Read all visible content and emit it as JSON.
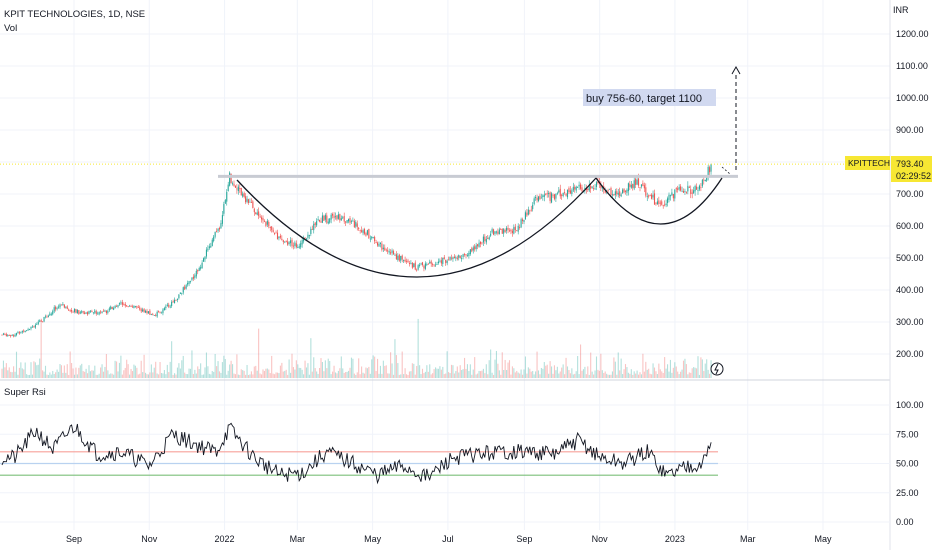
{
  "header": {
    "symbol_line": "KPIT TECHNOLOGIES, 1D, NSE",
    "volume_label": "Vol",
    "currency": "INR"
  },
  "price_badge": {
    "ticker": "KPITTECH",
    "price": "793.40",
    "countdown": "02:29:52"
  },
  "annotation": {
    "text": "buy 756-60, target 1100"
  },
  "indicator": {
    "name": "Super Rsi"
  },
  "colors": {
    "up": "#26a69a",
    "down": "#ef5350",
    "badge": "#f7e733",
    "rsi_upper": "#f7a19a",
    "rsi_mid": "#b9d2f0",
    "rsi_lower": "#7cbf7a",
    "annotation_bg": "#d1d9f0"
  },
  "chart_data": [
    {
      "type": "candlestick",
      "title": "KPIT TECHNOLOGIES, 1D, NSE",
      "ylabel": "INR",
      "ylim": [
        130,
        1260
      ],
      "y_ticks": [
        "1200.00",
        "1100.00",
        "1000.00",
        "900.00",
        "800.00",
        "700.00",
        "600.00",
        "500.00",
        "400.00",
        "300.00",
        "200.00"
      ],
      "x_ticks": [
        "Sep",
        "Nov",
        "2022",
        "Mar",
        "May",
        "Jul",
        "Sep",
        "Nov",
        "2023",
        "Mar",
        "May"
      ],
      "close_path": [
        [
          "2021-07-15",
          260
        ],
        [
          "2021-08-05",
          300
        ],
        [
          "2021-08-20",
          355
        ],
        [
          "2021-09-05",
          330
        ],
        [
          "2021-09-25",
          330
        ],
        [
          "2021-10-10",
          360
        ],
        [
          "2021-11-05",
          320
        ],
        [
          "2021-11-20",
          360
        ],
        [
          "2021-12-10",
          460
        ],
        [
          "2021-12-28",
          600
        ],
        [
          "2022-01-05",
          755
        ],
        [
          "2022-01-25",
          650
        ],
        [
          "2022-02-15",
          560
        ],
        [
          "2022-03-01",
          540
        ],
        [
          "2022-03-20",
          620
        ],
        [
          "2022-04-05",
          630
        ],
        [
          "2022-04-20",
          600
        ],
        [
          "2022-05-10",
          530
        ],
        [
          "2022-06-05",
          470
        ],
        [
          "2022-06-25",
          490
        ],
        [
          "2022-07-15",
          510
        ],
        [
          "2022-08-05",
          580
        ],
        [
          "2022-08-25",
          590
        ],
        [
          "2022-09-10",
          680
        ],
        [
          "2022-10-01",
          700
        ],
        [
          "2022-10-28",
          730
        ],
        [
          "2022-11-15",
          700
        ],
        [
          "2022-12-01",
          740
        ],
        [
          "2022-12-20",
          660
        ],
        [
          "2023-01-05",
          720
        ],
        [
          "2023-01-20",
          710
        ],
        [
          "2023-01-31",
          793.4
        ]
      ],
      "last_price": 793.4,
      "resistance_level": 755,
      "target": 1100,
      "pattern": "cup and handle"
    },
    {
      "type": "line",
      "title": "Super Rsi",
      "ylim": [
        0,
        100
      ],
      "y_ticks": [
        "100.00",
        "75.00",
        "50.00",
        "25.00",
        "0.00"
      ],
      "levels": [
        60,
        50,
        40
      ],
      "series": [
        {
          "name": "Super Rsi",
          "x": [
            "2021-07-15",
            "2021-08-01",
            "2021-08-15",
            "2021-09-01",
            "2021-09-20",
            "2021-10-10",
            "2021-11-01",
            "2021-11-20",
            "2021-12-05",
            "2021-12-25",
            "2022-01-05",
            "2022-01-25",
            "2022-02-15",
            "2022-03-05",
            "2022-03-25",
            "2022-04-15",
            "2022-05-05",
            "2022-05-25",
            "2022-06-15",
            "2022-07-05",
            "2022-07-25",
            "2022-08-15",
            "2022-09-05",
            "2022-09-25",
            "2022-10-15",
            "2022-11-01",
            "2022-11-20",
            "2022-12-10",
            "2022-12-25",
            "2023-01-10",
            "2023-01-25",
            "2023-01-31"
          ],
          "values": [
            55,
            78,
            62,
            82,
            58,
            60,
            48,
            75,
            68,
            60,
            80,
            55,
            40,
            42,
            60,
            50,
            40,
            48,
            38,
            55,
            58,
            60,
            60,
            58,
            70,
            55,
            50,
            60,
            40,
            48,
            52,
            70
          ]
        }
      ]
    }
  ]
}
